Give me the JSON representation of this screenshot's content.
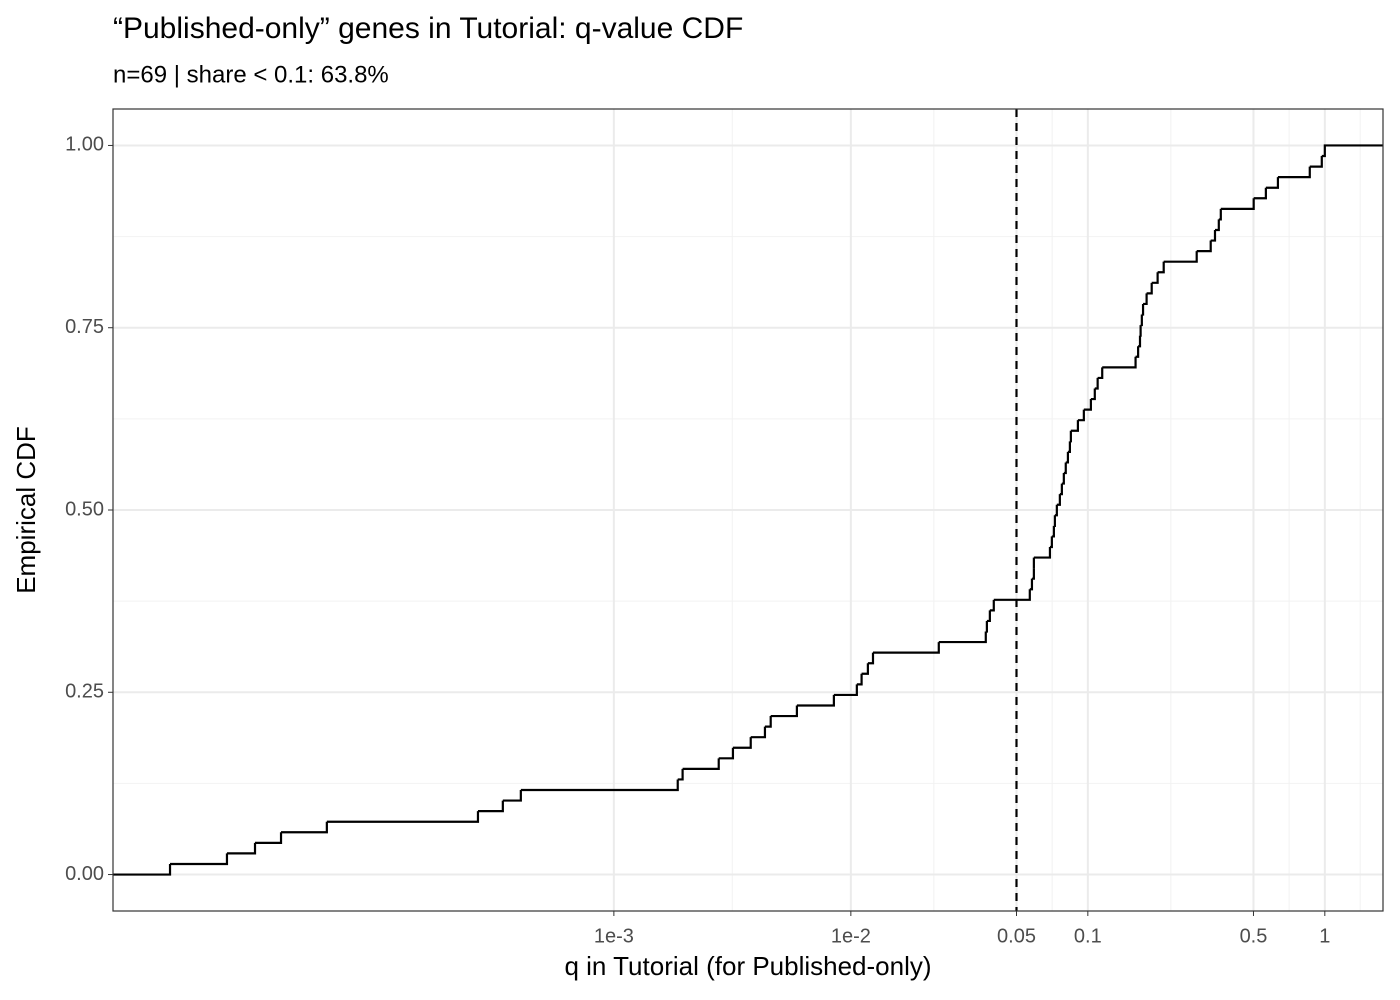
{
  "chart_data": {
    "type": "ecdf",
    "title": "“Published-only” genes in Tutorial: q-value CDF",
    "subtitle": "n=69 | share < 0.1: 63.8%",
    "x_label": "q in Tutorial (for Published-only)",
    "y_label": "Empirical CDF",
    "x_log": true,
    "color": "#000000",
    "values": [
      1.34e-05,
      2.33e-05,
      3.06e-05,
      3.94e-05,
      6.15e-05,
      0.000267,
      0.00034,
      0.000405,
      0.00186,
      0.00195,
      0.00277,
      0.00318,
      0.00378,
      0.00434,
      0.00459,
      0.00592,
      0.00848,
      0.0106,
      0.0111,
      0.0118,
      0.0124,
      0.0235,
      0.0371,
      0.0375,
      0.0386,
      0.0401,
      0.0569,
      0.0581,
      0.0592,
      0.0592,
      0.0692,
      0.0705,
      0.0719,
      0.0726,
      0.074,
      0.0762,
      0.0777,
      0.0792,
      0.0807,
      0.0824,
      0.084,
      0.0848,
      0.0908,
      0.0962,
      0.103,
      0.107,
      0.11,
      0.115,
      0.159,
      0.163,
      0.166,
      0.167,
      0.169,
      0.171,
      0.177,
      0.186,
      0.197,
      0.209,
      0.288,
      0.33,
      0.344,
      0.357,
      0.364,
      0.501,
      0.564,
      0.634,
      0.864,
      0.971,
      1
    ],
    "vline": 0.05,
    "xlim": [
      7.7e-06,
      1.76
    ],
    "ylim": [
      -0.05,
      1.05
    ],
    "xticks": [
      {
        "value": 0.001,
        "label": "1e-3"
      },
      {
        "value": 0.01,
        "label": "1e-2"
      },
      0.05,
      0.1,
      0.5,
      1
    ],
    "x_minor_ticks": [
      0.00316,
      0.0224,
      0.0707,
      0.224,
      0.707,
      1.41
    ],
    "yticks": [
      {
        "value": 0,
        "label": "0.00"
      },
      {
        "value": 0.25,
        "label": "0.25"
      },
      {
        "value": 0.5,
        "label": "0.50"
      },
      {
        "value": 0.75,
        "label": "0.75"
      },
      {
        "value": 1,
        "label": "1.00"
      }
    ],
    "y_minor_ticks": [
      0.125,
      0.375,
      0.625,
      0.875
    ],
    "grid": true
  }
}
